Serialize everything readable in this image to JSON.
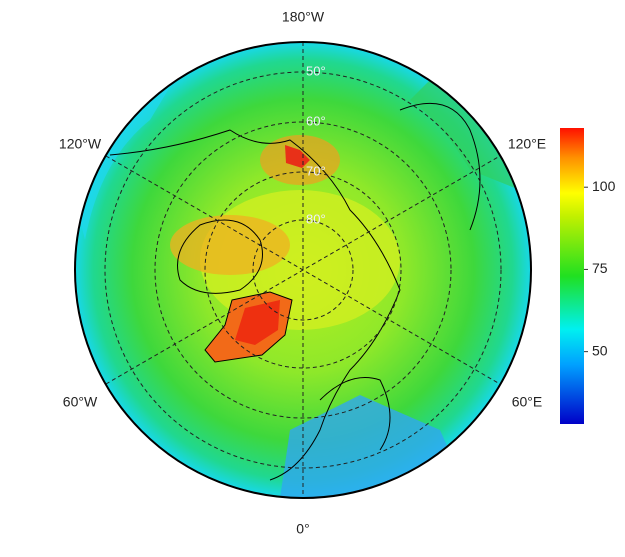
{
  "map": {
    "longitude_labels": [
      "180°W",
      "120°W",
      "120°E",
      "60°W",
      "60°E",
      "0°"
    ],
    "latitude_labels": [
      "50°",
      "60°",
      "70°",
      "80°"
    ],
    "colorbar": {
      "lim": [
        28,
        118
      ],
      "ticks": [
        50,
        75,
        100
      ]
    }
  }
}
